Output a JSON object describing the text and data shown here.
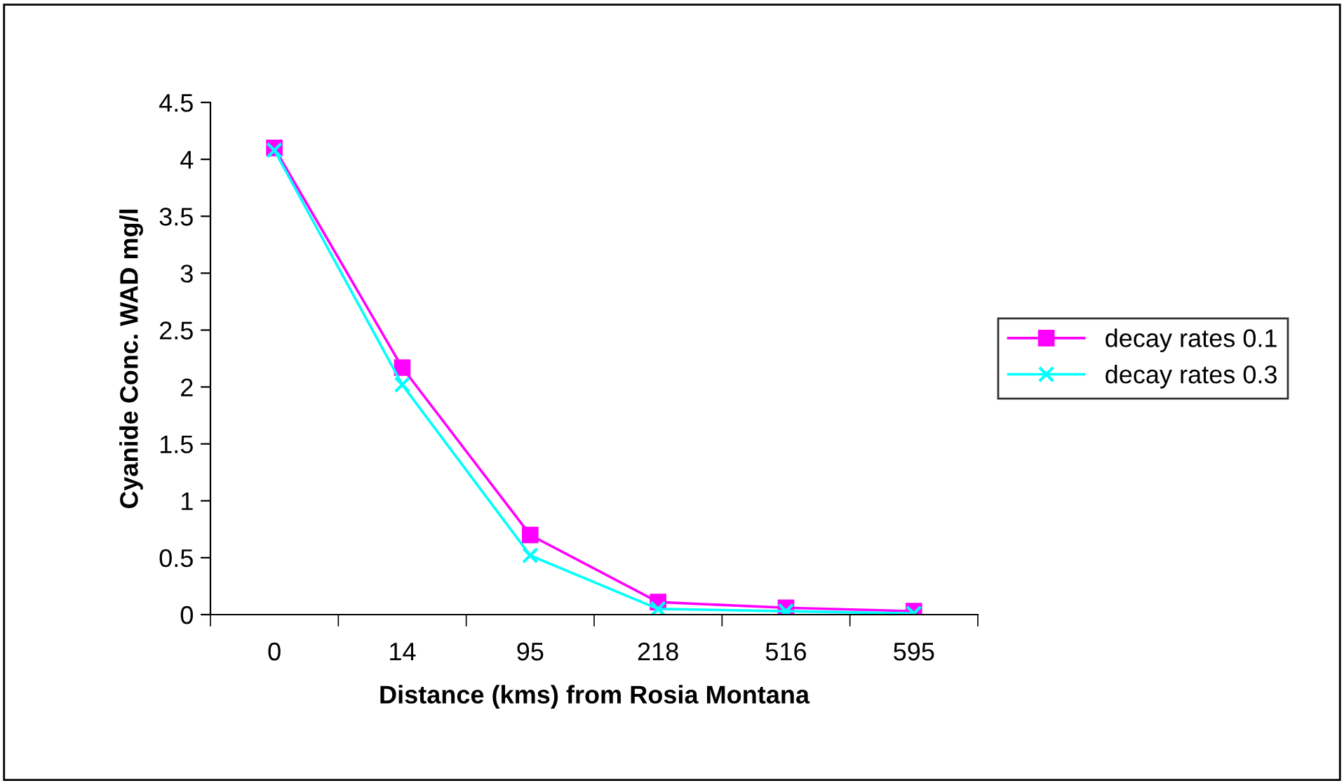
{
  "chart_data": {
    "type": "line",
    "xlabel": "Distance (kms) from Rosia Montana",
    "ylabel": "Cyanide Conc. WAD mg/l",
    "categories": [
      "0",
      "14",
      "95",
      "218",
      "516",
      "595"
    ],
    "series": [
      {
        "name": "decay rates 0.1",
        "color": "#ff00ff",
        "marker": "square",
        "values": [
          4.1,
          2.17,
          0.7,
          0.11,
          0.06,
          0.03
        ]
      },
      {
        "name": "decay rates 0.3",
        "color": "#00ffff",
        "marker": "cross",
        "values": [
          4.08,
          2.02,
          0.52,
          0.05,
          0.03,
          0.01
        ]
      }
    ],
    "ylim": [
      0,
      4.5
    ],
    "yticks": [
      0,
      0.5,
      1,
      1.5,
      2,
      2.5,
      3,
      3.5,
      4,
      4.5
    ],
    "grid": false,
    "legend": "right"
  }
}
